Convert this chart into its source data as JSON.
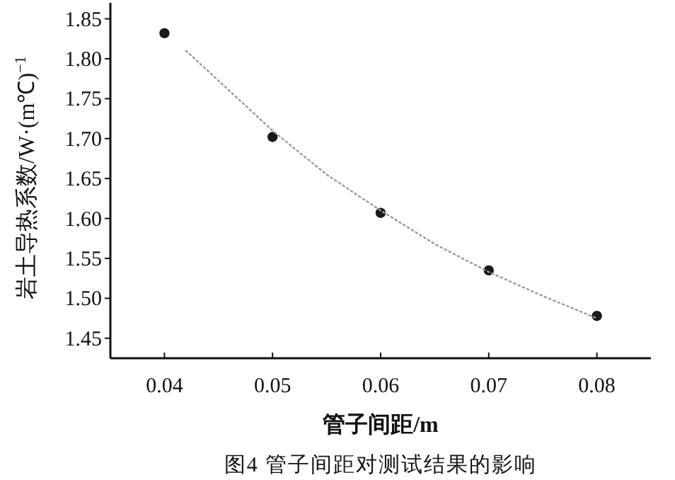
{
  "chart_data": {
    "type": "scatter",
    "xlabel": "管子间距/m",
    "ylabel": "岩土导热系数/W·(m℃)$^{−1}$",
    "annotations": [
      "图4  管子间距对测试结果的影响"
    ],
    "x": [
      0.04,
      0.05,
      0.06,
      0.07,
      0.08
    ],
    "series": [
      {
        "color": "#1a1a1a",
        "marker": "circle",
        "values": [
          1.832,
          1.702,
          1.607,
          1.535,
          1.478
        ]
      },
      {
        "type": "line",
        "color": "#9a9a9a",
        "line_style": "dotted",
        "marker": "none",
        "x": [
          0.042,
          0.05,
          0.055,
          0.06,
          0.065,
          0.07,
          0.075,
          0.08
        ],
        "values": [
          1.81,
          1.71,
          1.655,
          1.61,
          1.568,
          1.533,
          1.503,
          1.475
        ]
      }
    ],
    "xlim": [
      0.035,
      0.085
    ],
    "ylim": [
      1.425,
      1.87
    ],
    "xticks": [
      0.04,
      0.05,
      0.06,
      0.07,
      0.08
    ],
    "yticks": [
      1.45,
      {
        "value": 1.5,
        "label": "1.50"
      },
      1.55,
      {
        "value": 1.6,
        "label": "1.60"
      },
      1.65,
      {
        "value": 1.7,
        "label": "1.70"
      },
      1.75,
      {
        "value": 1.8,
        "label": "1.80"
      },
      1.85
    ],
    "grid": false
  }
}
